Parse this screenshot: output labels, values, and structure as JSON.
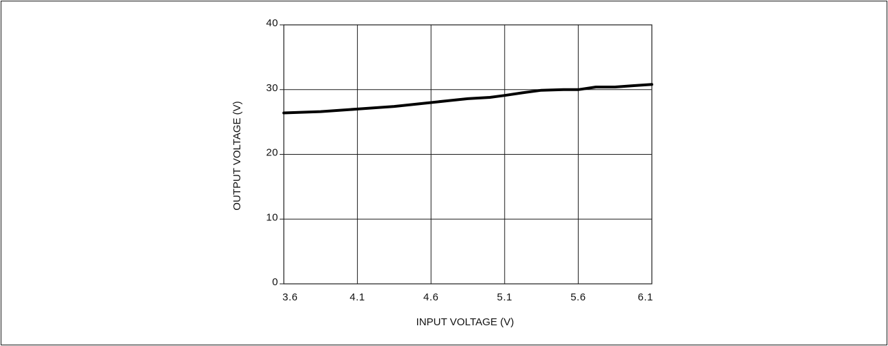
{
  "chart_data": {
    "type": "line",
    "title": "",
    "xlabel": "INPUT VOLTAGE (V)",
    "ylabel": "OUTPUT VOLTAGE (V)",
    "xlim": [
      3.6,
      6.1
    ],
    "ylim": [
      0,
      40
    ],
    "xticks": [
      "3.6",
      "4.1",
      "4.6",
      "5.1",
      "5.6",
      "6.1"
    ],
    "yticks": [
      "0",
      "10",
      "20",
      "30",
      "40"
    ],
    "grid": true,
    "legend": "none",
    "line_color": "#000000",
    "series": [
      {
        "x": [
          3.6,
          3.85,
          4.1,
          4.35,
          4.6,
          4.72,
          4.85,
          5.0,
          5.1,
          5.22,
          5.35,
          5.5,
          5.6,
          5.72,
          5.85,
          5.97,
          6.1
        ],
        "y": [
          26.4,
          26.6,
          27.0,
          27.4,
          28.0,
          28.3,
          28.6,
          28.8,
          29.1,
          29.5,
          29.9,
          30.0,
          30.0,
          30.4,
          30.4,
          30.6,
          30.8
        ]
      }
    ]
  }
}
